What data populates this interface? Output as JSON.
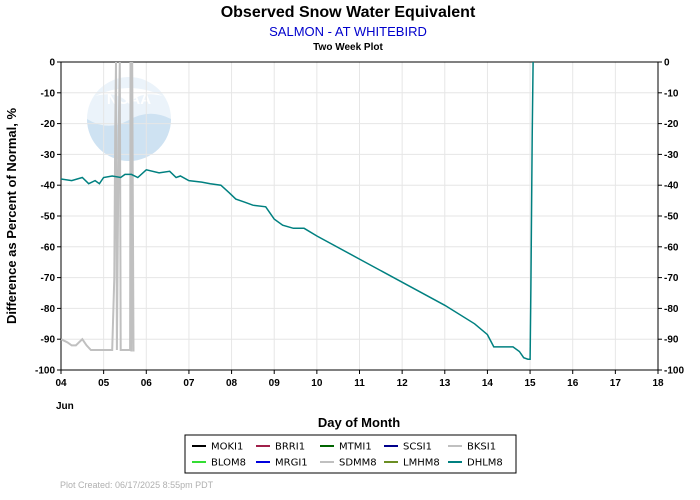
{
  "chart_data": {
    "type": "line",
    "title": "Observed Snow Water Equivalent",
    "subtitle": "SALMON - AT WHITEBIRD",
    "subsubtitle": "Two Week Plot",
    "xlabel": "Day of Month",
    "ylabel": "Difference as Percent of Normal, %",
    "month_label": "Jun",
    "xlim": [
      4,
      18
    ],
    "ylim": [
      -100,
      0
    ],
    "x_ticks": [
      "04",
      "05",
      "06",
      "07",
      "08",
      "09",
      "10",
      "11",
      "12",
      "13",
      "14",
      "15",
      "16",
      "17",
      "18"
    ],
    "y_ticks": [
      0,
      -10,
      -20,
      -30,
      -40,
      -50,
      -60,
      -70,
      -80,
      -90,
      -100
    ],
    "grid": true,
    "legend_position": "bottom",
    "series": [
      {
        "name": "MOKI1",
        "color": "#000000",
        "points": []
      },
      {
        "name": "BRRI1",
        "color": "#a0204a",
        "points": []
      },
      {
        "name": "MTMI1",
        "color": "#006400",
        "points": []
      },
      {
        "name": "SCSI1",
        "color": "#00008b",
        "points": []
      },
      {
        "name": "BKSI1",
        "color": "#c0c0c0",
        "points": []
      },
      {
        "name": "BLOM8",
        "color": "#33dd33",
        "points": []
      },
      {
        "name": "MRGI1",
        "color": "#0000dd",
        "points": []
      },
      {
        "name": "SDMM8",
        "color": "#c0c0c0",
        "points": [
          [
            4.0,
            -90
          ],
          [
            4.15,
            -91
          ],
          [
            4.25,
            -92
          ],
          [
            4.35,
            -92
          ],
          [
            4.5,
            -90
          ],
          [
            4.6,
            -92
          ],
          [
            4.7,
            -93.5
          ],
          [
            5.2,
            -93.5
          ],
          [
            5.25,
            -70
          ],
          [
            5.27,
            -23
          ],
          [
            5.29,
            0
          ],
          [
            5.31,
            -93.5
          ],
          [
            5.35,
            -25
          ],
          [
            5.38,
            0
          ],
          [
            5.4,
            -93.5
          ],
          [
            5.62,
            -93.5
          ],
          [
            5.63,
            0
          ],
          [
            5.65,
            -94
          ],
          [
            5.67,
            0
          ],
          [
            5.7,
            -94
          ]
        ]
      },
      {
        "name": "LMHM8",
        "color": "#6b8e23",
        "points": []
      },
      {
        "name": "DHLM8",
        "color": "#008080",
        "points": [
          [
            4.0,
            -38
          ],
          [
            4.25,
            -38.5
          ],
          [
            4.5,
            -37.5
          ],
          [
            4.65,
            -39.5
          ],
          [
            4.8,
            -38.5
          ],
          [
            4.9,
            -39.5
          ],
          [
            5.0,
            -37.5
          ],
          [
            5.2,
            -37
          ],
          [
            5.4,
            -37.5
          ],
          [
            5.5,
            -36.5
          ],
          [
            5.65,
            -36.5
          ],
          [
            5.8,
            -37.5
          ],
          [
            6.0,
            -35
          ],
          [
            6.3,
            -36
          ],
          [
            6.55,
            -35.5
          ],
          [
            6.7,
            -37.5
          ],
          [
            6.8,
            -37
          ],
          [
            7.0,
            -38.5
          ],
          [
            7.3,
            -39
          ],
          [
            7.5,
            -39.5
          ],
          [
            7.75,
            -40
          ],
          [
            7.95,
            -42.5
          ],
          [
            8.1,
            -44.5
          ],
          [
            8.3,
            -45.5
          ],
          [
            8.5,
            -46.5
          ],
          [
            8.8,
            -47
          ],
          [
            9.0,
            -51
          ],
          [
            9.2,
            -53
          ],
          [
            9.45,
            -54
          ],
          [
            9.7,
            -54
          ],
          [
            10.0,
            -56.5
          ],
          [
            11.0,
            -64
          ],
          [
            12.0,
            -71.5
          ],
          [
            13.0,
            -79
          ],
          [
            13.7,
            -85
          ],
          [
            14.0,
            -88.5
          ],
          [
            14.15,
            -92.5
          ],
          [
            14.6,
            -92.5
          ],
          [
            14.75,
            -94
          ],
          [
            14.85,
            -96
          ],
          [
            14.95,
            -96.5
          ],
          [
            15.0,
            -96.5
          ],
          [
            15.02,
            -73
          ],
          [
            15.05,
            -24
          ],
          [
            15.07,
            0
          ]
        ]
      }
    ]
  },
  "footer": "Plot Created:  06/17/2025 8:55pm PDT"
}
